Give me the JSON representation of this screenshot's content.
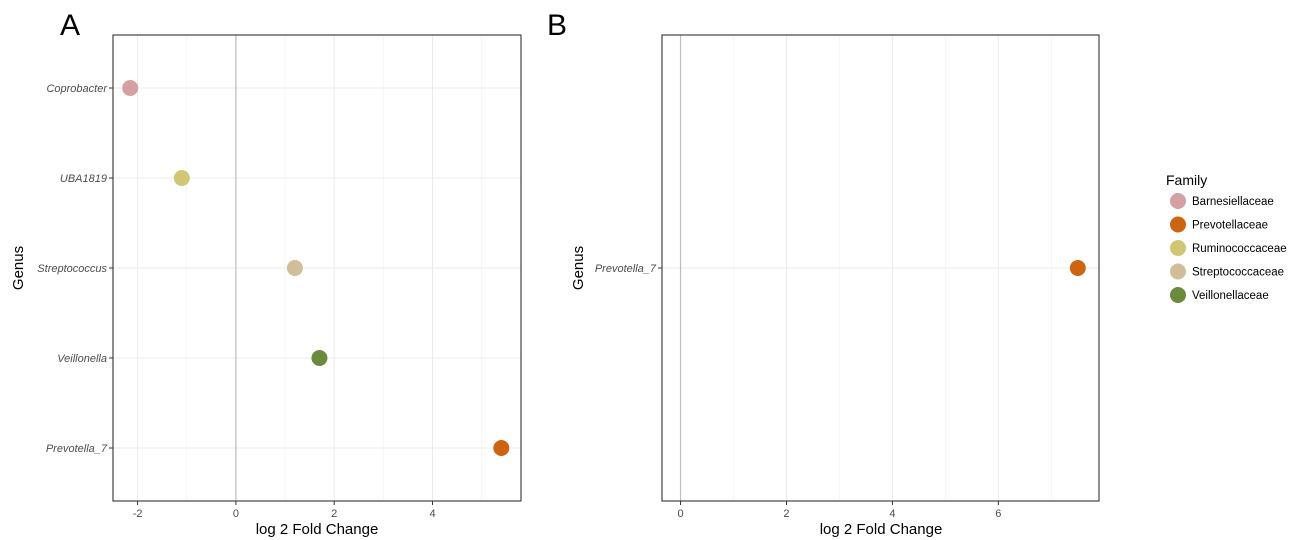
{
  "chart_data": [
    {
      "panel": "A",
      "type": "scatter",
      "xlabel": "log 2 Fold Change",
      "ylabel": "Genus",
      "xlim": [
        -2.5,
        5.8
      ],
      "xticks": [
        -2,
        0,
        2,
        4
      ],
      "categories": [
        "Coprobacter",
        "UBA1819",
        "Streptococcus",
        "Veillonella",
        "Prevotella_7"
      ],
      "points": [
        {
          "genus": "Coprobacter",
          "x": -2.15,
          "family": "Barnesiellaceae"
        },
        {
          "genus": "UBA1819",
          "x": -1.1,
          "family": "Ruminococcaceae"
        },
        {
          "genus": "Streptococcus",
          "x": 1.2,
          "family": "Streptococcaceae"
        },
        {
          "genus": "Veillonella",
          "x": 1.7,
          "family": "Veillonellaceae"
        },
        {
          "genus": "Prevotella_7",
          "x": 5.4,
          "family": "Prevotellaceae"
        }
      ],
      "grid": true
    },
    {
      "panel": "B",
      "type": "scatter",
      "xlabel": "log 2 Fold Change",
      "ylabel": "Genus",
      "xlim": [
        -0.35,
        7.9
      ],
      "xticks": [
        0,
        2,
        4,
        6
      ],
      "categories": [
        "Prevotella_7"
      ],
      "points": [
        {
          "genus": "Prevotella_7",
          "x": 7.5,
          "family": "Prevotellaceae"
        }
      ],
      "grid": true
    }
  ],
  "legend": {
    "title": "Family",
    "placement": "right",
    "items": [
      {
        "label": "Barnesiellaceae",
        "color": "#d4a0a4"
      },
      {
        "label": "Prevotellaceae",
        "color": "#cc6410"
      },
      {
        "label": "Ruminococcaceae",
        "color": "#cfc776"
      },
      {
        "label": "Streptococcaceae",
        "color": "#d1bd99"
      },
      {
        "label": "Veillonellaceae",
        "color": "#6b8a3c"
      }
    ]
  }
}
